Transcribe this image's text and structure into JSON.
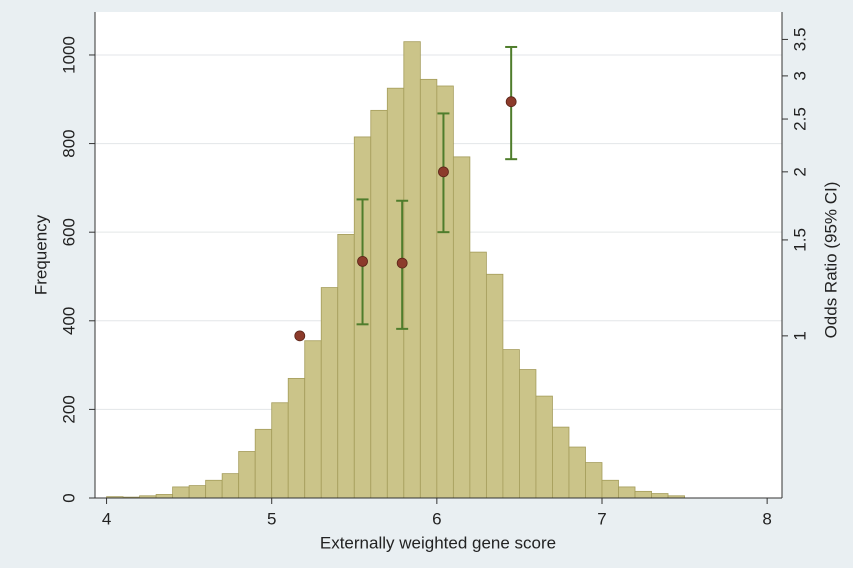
{
  "chart_data": {
    "type": "histogram",
    "xlabel": "Externally weighted gene score",
    "ylabel": "Frequency",
    "y2label": "Odds Ratio (95% CI)",
    "bins": [
      4.0,
      4.1,
      4.2,
      4.3,
      4.4,
      4.5,
      4.6,
      4.7,
      4.8,
      4.9,
      5.0,
      5.1,
      5.2,
      5.3,
      5.4,
      5.5,
      5.6,
      5.7,
      5.8,
      5.9,
      6.0,
      6.1,
      6.2,
      6.3,
      6.4,
      6.5,
      6.6,
      6.7,
      6.8,
      6.9,
      7.0,
      7.1,
      7.2,
      7.3,
      7.4,
      7.5
    ],
    "counts": [
      3,
      2,
      5,
      8,
      25,
      28,
      40,
      55,
      105,
      155,
      215,
      270,
      355,
      475,
      595,
      815,
      875,
      925,
      1030,
      945,
      930,
      770,
      555,
      505,
      335,
      290,
      230,
      160,
      115,
      80,
      40,
      25,
      15,
      10,
      5
    ],
    "color": "#cbc489",
    "edge_color": "#a49c5a",
    "xlim": [
      3.93,
      8.09
    ],
    "xticks": [
      4,
      5,
      6,
      7,
      8
    ],
    "ylim": [
      0,
      1097
    ],
    "yticks": [
      0,
      200,
      400,
      600,
      800,
      1000
    ],
    "y2lim": [
      0.504,
      3.93
    ],
    "y2ticks": [
      1,
      1.5,
      2,
      2.5,
      3,
      3.5
    ],
    "y2log": true,
    "grid": true,
    "odds_ratios": {
      "axis": "y2",
      "x": [
        5.17,
        5.55,
        5.79,
        6.04,
        6.45
      ],
      "values": [
        1.0,
        1.37,
        1.36,
        2.0,
        2.69
      ],
      "lower": [
        null,
        1.05,
        1.03,
        1.55,
        2.11
      ],
      "upper": [
        null,
        1.78,
        1.77,
        2.56,
        3.39
      ],
      "color": "#8c3b2b",
      "ci_color": "#4f7d2c"
    }
  }
}
